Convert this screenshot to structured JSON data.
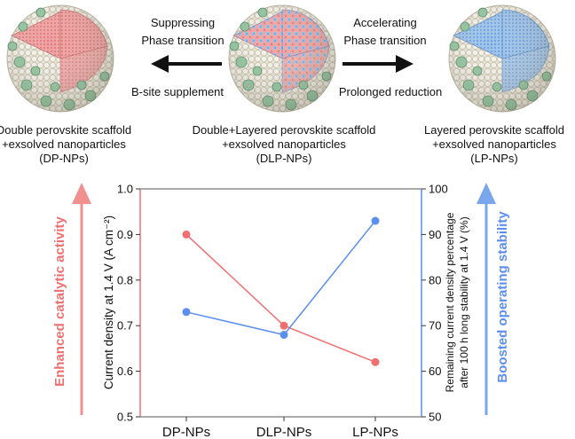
{
  "schematic": {
    "sphere_left": {
      "core": "double",
      "caption": [
        "Double perovskite scaffold",
        "+exsolved nanoparticles",
        "(DP-NPs)"
      ]
    },
    "sphere_mid": {
      "core": "mixed",
      "caption": [
        "Double+Layered perovskite scaffold",
        "+exsolved nanoparticles",
        "(DLP-NPs)"
      ]
    },
    "sphere_right": {
      "core": "layered",
      "caption": [
        "Layered perovskite scaffold",
        "+exsolved nanoparticles",
        "(LP-NPs)"
      ]
    },
    "arrow_left": {
      "above": [
        "Suppressing",
        "Phase transition"
      ],
      "below": "B-site supplement"
    },
    "arrow_right": {
      "above": [
        "Accelerating",
        "Phase transition"
      ],
      "below": "Prolonged reduction"
    }
  },
  "side_labels": {
    "left": "Enhanced catalytic activity",
    "right": "Boosted operating stability"
  },
  "colors": {
    "red": "#f07070",
    "blue": "#5b8ef0",
    "red_arrow": "#f29090",
    "blue_arrow": "#7aa6ee",
    "shell": "#e9e4d3",
    "shell_stroke": "#b9b3a0",
    "np": "#8fc49d",
    "np_stroke": "#4f8a62",
    "core_red": "#f1a2a2",
    "core_blue": "#9ec4ec"
  },
  "chart_data": {
    "type": "line",
    "categories": [
      "DP-NPs",
      "DLP-NPs",
      "LP-NPs"
    ],
    "series": [
      {
        "axis": "left",
        "color": "red",
        "values": [
          0.9,
          0.7,
          0.62
        ]
      },
      {
        "axis": "right",
        "color": "blue",
        "values": [
          73,
          68,
          93
        ]
      }
    ],
    "ylabel": "Current density at 1.4 V (A cm⁻²)",
    "ylim": [
      0.5,
      1.0
    ],
    "yticks": [
      "0.5",
      "0.6",
      "0.7",
      "0.8",
      "0.9",
      "1.0"
    ],
    "y2label": [
      "Remaining current density percentage",
      "after 100 h  long stability at 1.4 V (%)"
    ],
    "y2lim": [
      50,
      100
    ],
    "y2ticks": [
      "50",
      "60",
      "70",
      "80",
      "90",
      "100"
    ],
    "grid": false
  }
}
